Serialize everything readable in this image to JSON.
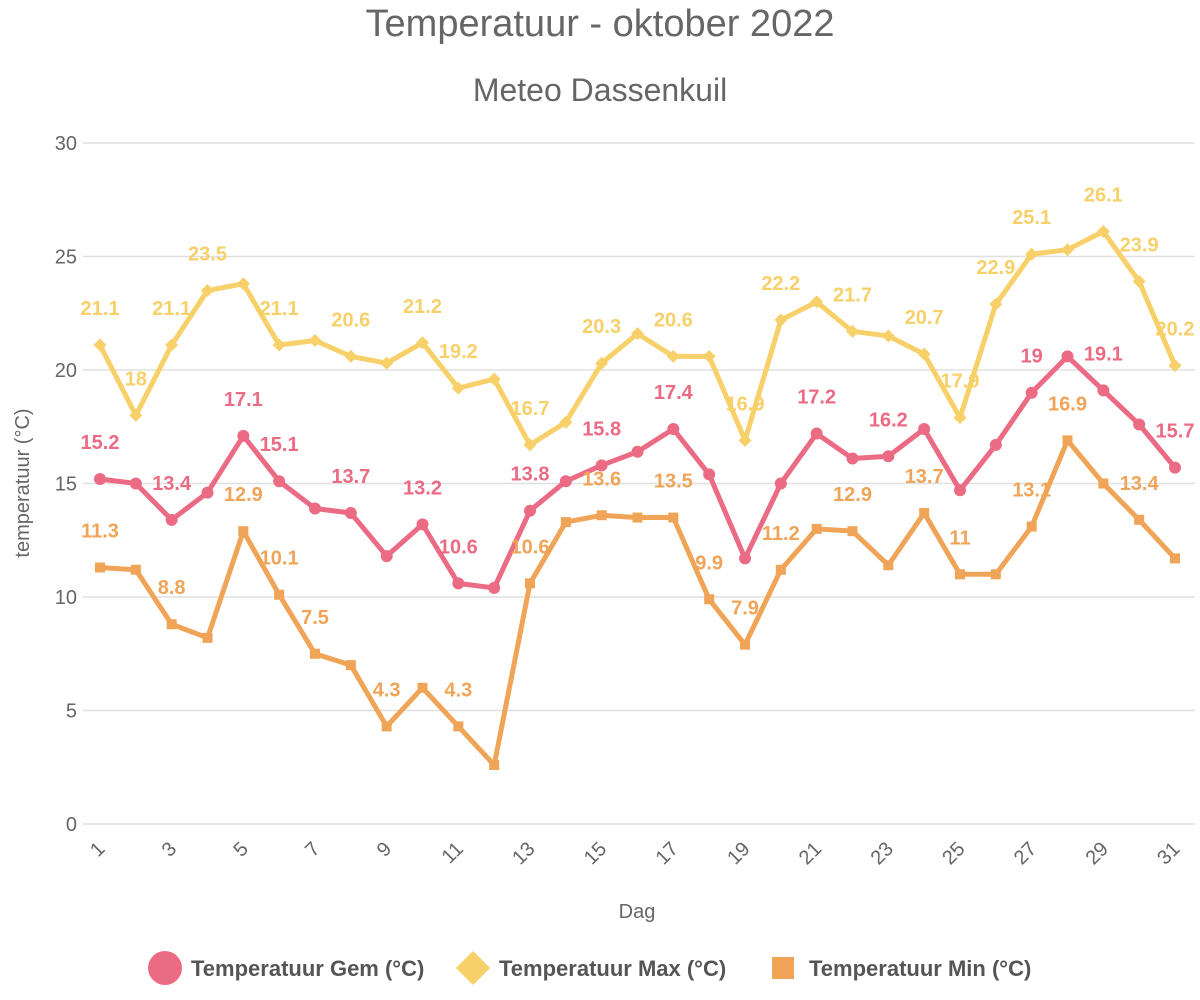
{
  "chart_data": {
    "type": "line",
    "title": "Temperatuur - oktober 2022",
    "subtitle": "Meteo Dassenkuil",
    "xlabel": "Dag",
    "ylabel": "temperatuur (°C)",
    "ylim": [
      0,
      30
    ],
    "yticks": [
      "0",
      "5",
      "10",
      "15",
      "20",
      "25",
      "30"
    ],
    "xticks": [
      "1",
      "3",
      "5",
      "7",
      "9",
      "11",
      "13",
      "15",
      "17",
      "19",
      "21",
      "23",
      "25",
      "27",
      "29",
      "31"
    ],
    "grid": "horizontal",
    "legend_position": "bottom",
    "x": [
      1,
      2,
      3,
      4,
      5,
      6,
      7,
      8,
      9,
      10,
      11,
      12,
      13,
      14,
      15,
      16,
      17,
      18,
      19,
      20,
      21,
      22,
      23,
      24,
      25,
      26,
      27,
      28,
      29,
      30,
      31
    ],
    "series": [
      {
        "name": "Temperatuur Max (°C)",
        "color": "#f7d06a",
        "marker": "diamond",
        "values": [
          21.1,
          18,
          21.1,
          23.5,
          23.8,
          21.1,
          21.3,
          20.6,
          20.3,
          21.2,
          19.2,
          19.6,
          16.7,
          17.7,
          20.3,
          21.6,
          20.6,
          20.6,
          16.9,
          22.2,
          23.0,
          21.7,
          21.5,
          20.7,
          17.9,
          22.9,
          25.1,
          25.3,
          26.1,
          23.9,
          20.2
        ],
        "labels": {
          "1": "21.1",
          "2": "18",
          "3": "21.1",
          "4": "23.5",
          "6": "21.1",
          "8": "20.6",
          "10": "21.2",
          "11": "19.2",
          "13": "16.7",
          "15": "20.3",
          "17": "20.6",
          "19": "16.9",
          "20": "22.2",
          "22": "21.7",
          "24": "20.7",
          "25": "17.9",
          "26": "22.9",
          "27": "25.1",
          "29": "26.1",
          "30": "23.9",
          "31": "20.2"
        }
      },
      {
        "name": "Temperatuur Gem (°C)",
        "color": "#ec6b84",
        "marker": "circle",
        "values": [
          15.2,
          15.0,
          13.4,
          14.6,
          17.1,
          15.1,
          13.9,
          13.7,
          11.8,
          13.2,
          10.6,
          10.4,
          13.8,
          15.1,
          15.8,
          16.4,
          17.4,
          15.4,
          11.7,
          15.0,
          17.2,
          16.1,
          16.2,
          17.4,
          14.7,
          16.7,
          19.0,
          20.6,
          19.1,
          17.6,
          15.7
        ],
        "labels": {
          "1": "15.2",
          "3": "13.4",
          "5": "17.1",
          "6": "15.1",
          "8": "13.7",
          "10": "13.2",
          "11": "10.6",
          "13": "13.8",
          "15": "15.8",
          "17": "17.4",
          "21": "17.2",
          "23": "16.2",
          "27": "19",
          "29": "19.1",
          "31": "15.7"
        }
      },
      {
        "name": "Temperatuur Min (°C)",
        "color": "#f0a457",
        "marker": "square",
        "values": [
          11.3,
          11.2,
          8.8,
          8.2,
          12.9,
          10.1,
          7.5,
          7.0,
          4.3,
          6.0,
          4.3,
          2.6,
          10.6,
          13.3,
          13.6,
          13.5,
          13.5,
          9.9,
          7.9,
          11.2,
          13.0,
          12.9,
          11.4,
          13.7,
          11.0,
          11.0,
          13.1,
          16.9,
          15.0,
          13.4,
          11.7
        ],
        "labels": {
          "1": "11.3",
          "3": "8.8",
          "5": "12.9",
          "6": "10.1",
          "7": "7.5",
          "9": "4.3",
          "11": "4.3",
          "13": "10.6",
          "15": "13.6",
          "17": "13.5",
          "18": "9.9",
          "19": "7.9",
          "20": "11.2",
          "22": "12.9",
          "24": "13.7",
          "25": "11",
          "27": "13.1",
          "28": "16.9",
          "30": "13.4"
        }
      }
    ],
    "legend": [
      {
        "name": "Temperatuur Gem (°C)",
        "color": "#ec6b84",
        "marker": "circle"
      },
      {
        "name": "Temperatuur Max (°C)",
        "color": "#f7d06a",
        "marker": "diamond"
      },
      {
        "name": "Temperatuur Min (°C)",
        "color": "#f0a457",
        "marker": "square"
      }
    ]
  }
}
